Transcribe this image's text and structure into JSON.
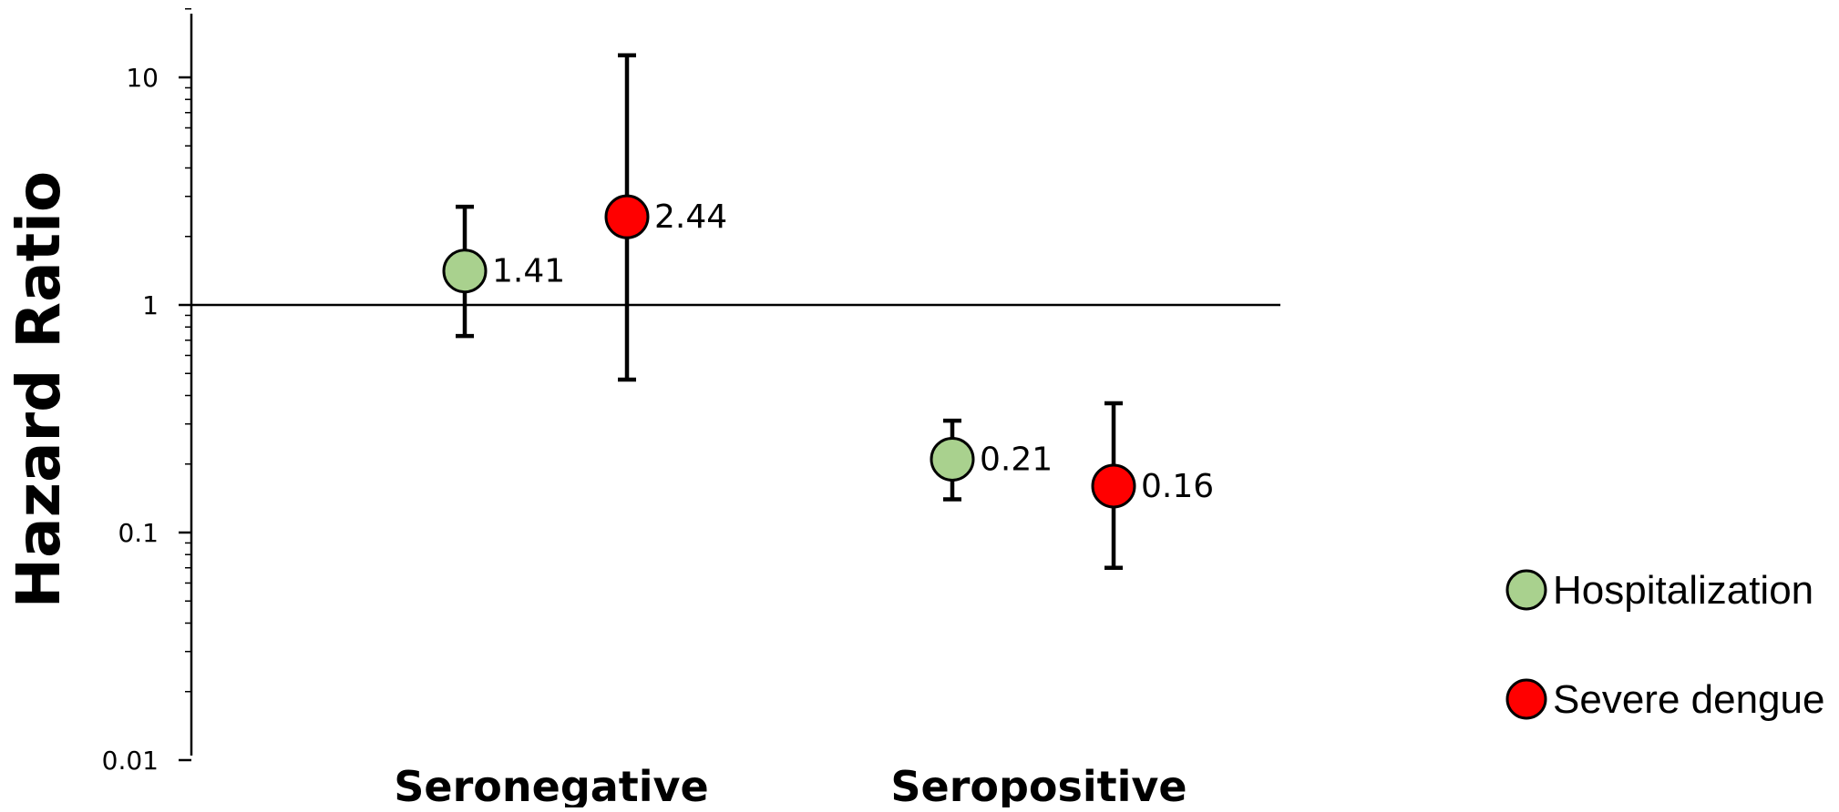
{
  "chart_data": {
    "type": "scatter",
    "ylabel": "Hazard Ratio",
    "yscale": "log",
    "ylim": [
      0.01,
      20
    ],
    "yticks": [
      0.01,
      0.1,
      1,
      10
    ],
    "ytick_labels": [
      "0.01",
      "0.1",
      "1",
      "10"
    ],
    "reference_line": 1,
    "grid": false,
    "legend_position": "right",
    "categories": [
      "Seronegative",
      "Seropositive"
    ],
    "series": [
      {
        "name": "Hospitalization",
        "color": "#a9d18e",
        "values": [
          1.41,
          0.21
        ],
        "ci_low": [
          0.73,
          0.14
        ],
        "ci_high": [
          2.7,
          0.31
        ],
        "labels": [
          "1.41",
          "0.21"
        ]
      },
      {
        "name": "Severe dengue",
        "color": "#ff0000",
        "values": [
          2.44,
          0.16
        ],
        "ci_low": [
          0.47,
          0.07
        ],
        "ci_high": [
          12.5,
          0.37
        ],
        "labels": [
          "2.44",
          "0.16"
        ]
      }
    ]
  }
}
